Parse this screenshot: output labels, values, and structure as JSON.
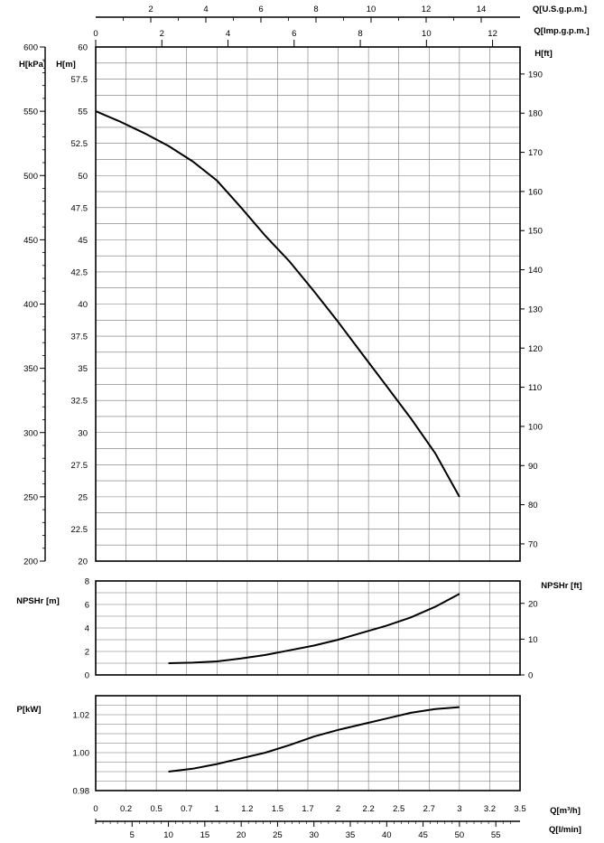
{
  "chart_data": [
    {
      "type": "line",
      "name_panel": "head",
      "axes": {
        "y_left_kpa": {
          "label": "H[kPa]",
          "range": [
            200,
            600
          ],
          "ticks": [
            200,
            250,
            300,
            350,
            400,
            450,
            500,
            550,
            600
          ]
        },
        "y_left_m": {
          "label": "H[m]",
          "range": [
            20,
            60
          ],
          "ticks": [
            "20",
            "22.5",
            "25",
            "27.5",
            "30",
            "32.5",
            "35",
            "37.5",
            "40",
            "42.5",
            "45",
            "47.5",
            "50",
            "52.5",
            "55",
            "57.5",
            "60"
          ]
        },
        "y_right_ft": {
          "label": "H[ft]",
          "range": [
            65.6,
            196.9
          ],
          "ticks": [
            70,
            80,
            90,
            100,
            110,
            120,
            130,
            140,
            150,
            160,
            170,
            180,
            190
          ]
        },
        "x_top_usgpm": {
          "label": "Q[U.S.g.p.m.]",
          "range": [
            0,
            15.41
          ],
          "ticks": [
            2,
            4,
            6,
            8,
            10,
            12,
            14
          ]
        },
        "x_top_impgpm": {
          "label": "Q[Imp.g.p.m.]",
          "range": [
            0,
            12.83
          ],
          "ticks": [
            0,
            2,
            4,
            6,
            8,
            10,
            12
          ]
        }
      },
      "grid": true,
      "series": [
        {
          "x": [
            0,
            0.2,
            0.4,
            0.6,
            0.8,
            1.0,
            1.2,
            1.4,
            1.6,
            1.8,
            2.0,
            2.2,
            2.4,
            2.6,
            2.8,
            3.0
          ],
          "y": [
            55,
            54.2,
            53.3,
            52.3,
            51.1,
            49.6,
            47.5,
            45.3,
            43.3,
            41,
            38.6,
            36.1,
            33.6,
            31.1,
            28.4,
            25.0
          ]
        }
      ]
    },
    {
      "type": "line",
      "name_panel": "npsh",
      "axes": {
        "y_left": {
          "label": "NPSHr [m]",
          "range": [
            0,
            8
          ],
          "ticks": [
            0,
            2,
            4,
            6,
            8
          ]
        },
        "y_right": {
          "label": "NPSHr [ft]",
          "range": [
            0,
            26.25
          ],
          "ticks": [
            0,
            10,
            20
          ]
        }
      },
      "grid": true,
      "series": [
        {
          "x": [
            0.6,
            0.8,
            1.0,
            1.2,
            1.4,
            1.6,
            1.8,
            2.0,
            2.2,
            2.4,
            2.6,
            2.8,
            3.0
          ],
          "y": [
            1.0,
            1.05,
            1.15,
            1.4,
            1.7,
            2.1,
            2.5,
            3.0,
            3.6,
            4.2,
            4.9,
            5.8,
            6.9
          ]
        }
      ]
    },
    {
      "type": "line",
      "name_panel": "power",
      "axes": {
        "y_left": {
          "label": "P[kW]",
          "range": [
            0.98,
            1.03
          ],
          "ticks": [
            "0.98",
            "1.00",
            "1.02"
          ]
        },
        "x_bottom_m3h": {
          "label": "Q[m³/h]",
          "range": [
            0,
            3.5
          ],
          "ticks": [
            "0",
            "0.2",
            "0.5",
            "0.7",
            "1",
            "1.2",
            "1.5",
            "1.7",
            "2",
            "2.2",
            "2.5",
            "2.7",
            "3",
            "3.2",
            "3.5"
          ]
        },
        "x_bottom_lmin": {
          "label": "Q[l/min]",
          "range": [
            0,
            58.33
          ],
          "ticks": [
            5,
            10,
            15,
            20,
            25,
            30,
            35,
            40,
            45,
            50,
            55
          ]
        }
      },
      "grid": true,
      "series": [
        {
          "x": [
            0.6,
            0.8,
            1.0,
            1.2,
            1.4,
            1.6,
            1.8,
            2.0,
            2.2,
            2.4,
            2.6,
            2.8,
            3.0
          ],
          "y": [
            0.99,
            0.9915,
            0.994,
            0.997,
            1.0,
            1.004,
            1.0085,
            1.012,
            1.015,
            1.018,
            1.021,
            1.023,
            1.024
          ]
        }
      ]
    }
  ]
}
